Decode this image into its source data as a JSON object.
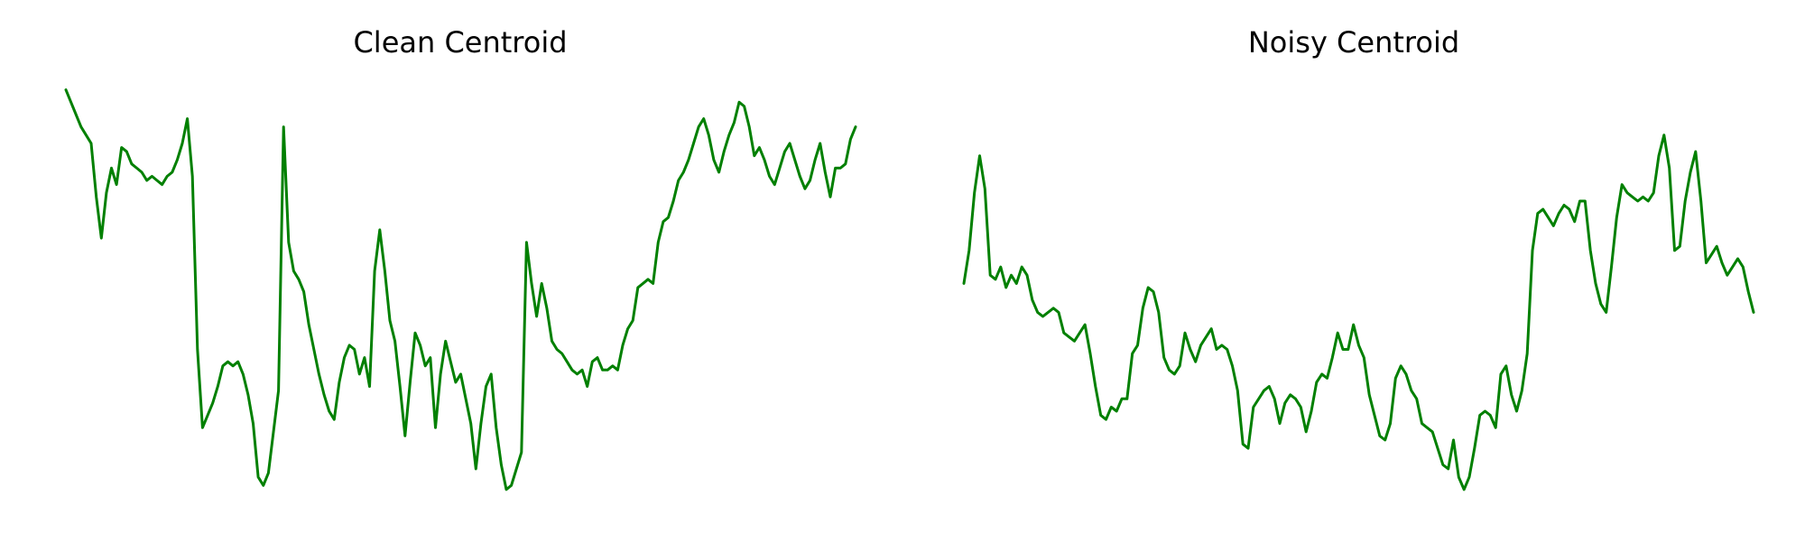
{
  "line_color": "#008000",
  "chart_data": [
    {
      "type": "line",
      "title": "Clean Centroid",
      "axes_visible": false,
      "grid": false,
      "ylim": [
        0,
        1
      ],
      "series": [
        {
          "values": [
            0.99,
            0.96,
            0.93,
            0.9,
            0.88,
            0.86,
            0.73,
            0.63,
            0.74,
            0.8,
            0.76,
            0.85,
            0.84,
            0.81,
            0.8,
            0.79,
            0.77,
            0.78,
            0.77,
            0.76,
            0.78,
            0.79,
            0.82,
            0.86,
            0.92,
            0.78,
            0.36,
            0.17,
            0.2,
            0.23,
            0.27,
            0.32,
            0.33,
            0.32,
            0.33,
            0.3,
            0.25,
            0.18,
            0.05,
            0.03,
            0.06,
            0.16,
            0.26,
            0.9,
            0.62,
            0.55,
            0.53,
            0.5,
            0.42,
            0.36,
            0.3,
            0.25,
            0.21,
            0.19,
            0.28,
            0.34,
            0.37,
            0.36,
            0.3,
            0.34,
            0.27,
            0.55,
            0.65,
            0.55,
            0.43,
            0.38,
            0.27,
            0.15,
            0.28,
            0.4,
            0.37,
            0.32,
            0.34,
            0.17,
            0.3,
            0.38,
            0.33,
            0.28,
            0.3,
            0.24,
            0.18,
            0.07,
            0.18,
            0.27,
            0.3,
            0.17,
            0.08,
            0.02,
            0.03,
            0.07,
            0.11,
            0.62,
            0.52,
            0.44,
            0.52,
            0.46,
            0.38,
            0.36,
            0.35,
            0.33,
            0.31,
            0.3,
            0.31,
            0.27,
            0.33,
            0.34,
            0.31,
            0.31,
            0.32,
            0.31,
            0.37,
            0.41,
            0.43,
            0.51,
            0.52,
            0.53,
            0.52,
            0.62,
            0.67,
            0.68,
            0.72,
            0.77,
            0.79,
            0.82,
            0.86,
            0.9,
            0.92,
            0.88,
            0.82,
            0.79,
            0.84,
            0.88,
            0.91,
            0.96,
            0.95,
            0.9,
            0.83,
            0.85,
            0.82,
            0.78,
            0.76,
            0.8,
            0.84,
            0.86,
            0.82,
            0.78,
            0.75,
            0.77,
            0.82,
            0.86,
            0.79,
            0.73,
            0.8,
            0.8,
            0.81,
            0.87,
            0.9
          ]
        }
      ]
    },
    {
      "type": "line",
      "title": "Noisy Centroid",
      "axes_visible": false,
      "grid": false,
      "ylim": [
        0,
        1
      ],
      "series": [
        {
          "values": [
            0.52,
            0.6,
            0.74,
            0.83,
            0.75,
            0.54,
            0.53,
            0.56,
            0.51,
            0.54,
            0.52,
            0.56,
            0.54,
            0.48,
            0.45,
            0.44,
            0.45,
            0.46,
            0.45,
            0.4,
            0.39,
            0.38,
            0.4,
            0.42,
            0.35,
            0.27,
            0.2,
            0.19,
            0.22,
            0.21,
            0.24,
            0.24,
            0.35,
            0.37,
            0.46,
            0.51,
            0.5,
            0.45,
            0.34,
            0.31,
            0.3,
            0.32,
            0.4,
            0.36,
            0.33,
            0.37,
            0.39,
            0.41,
            0.36,
            0.37,
            0.36,
            0.32,
            0.26,
            0.13,
            0.12,
            0.22,
            0.24,
            0.26,
            0.27,
            0.24,
            0.18,
            0.23,
            0.25,
            0.24,
            0.22,
            0.16,
            0.21,
            0.28,
            0.3,
            0.29,
            0.34,
            0.4,
            0.36,
            0.36,
            0.42,
            0.37,
            0.34,
            0.25,
            0.2,
            0.15,
            0.14,
            0.18,
            0.29,
            0.32,
            0.3,
            0.26,
            0.24,
            0.18,
            0.17,
            0.16,
            0.12,
            0.08,
            0.07,
            0.14,
            0.05,
            0.02,
            0.05,
            0.12,
            0.2,
            0.21,
            0.2,
            0.17,
            0.3,
            0.32,
            0.25,
            0.21,
            0.26,
            0.35,
            0.6,
            0.69,
            0.7,
            0.68,
            0.66,
            0.69,
            0.71,
            0.7,
            0.67,
            0.72,
            0.72,
            0.6,
            0.52,
            0.47,
            0.45,
            0.56,
            0.68,
            0.76,
            0.74,
            0.73,
            0.72,
            0.73,
            0.72,
            0.74,
            0.83,
            0.88,
            0.8,
            0.6,
            0.61,
            0.72,
            0.79,
            0.84,
            0.72,
            0.57,
            0.59,
            0.61,
            0.57,
            0.54,
            0.56,
            0.58,
            0.56,
            0.5,
            0.45
          ]
        }
      ]
    }
  ]
}
